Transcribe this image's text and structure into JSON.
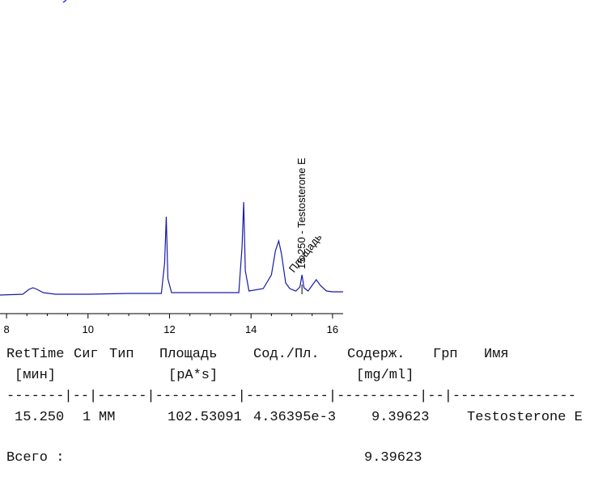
{
  "chart_data": {
    "type": "line",
    "x": [
      7.84,
      8.4,
      8.55,
      8.65,
      8.75,
      8.9,
      9.2,
      10,
      11,
      11.8,
      11.88,
      11.92,
      11.96,
      12.05,
      13,
      13.7,
      13.78,
      13.82,
      13.86,
      13.95,
      14.3,
      14.5,
      14.6,
      14.68,
      14.75,
      14.85,
      14.95,
      15.1,
      15.2,
      15.25,
      15.3,
      15.4,
      15.5,
      15.6,
      15.7,
      15.85,
      16.0,
      16.26
    ],
    "series": [
      {
        "color": "#1a1aa8",
        "values": [
          0,
          1,
          7,
          9,
          7,
          3,
          1,
          1,
          2,
          2,
          40,
          97,
          20,
          3,
          3,
          3,
          60,
          115,
          30,
          5,
          8,
          25,
          55,
          67,
          50,
          15,
          8,
          5,
          10,
          25,
          9,
          5,
          12,
          19,
          12,
          5,
          4,
          4
        ]
      }
    ],
    "xlim": [
      7.84,
      16.26
    ],
    "xticks": [
      8,
      10,
      12,
      14,
      16
    ],
    "ylim": [
      0,
      130
    ],
    "annotations": [
      {
        "x": 15.25,
        "text": "15.250 -  Testosterone E"
      },
      {
        "x": 15.45,
        "text": "Площадь"
      }
    ]
  },
  "report": {
    "headers": [
      "RetTime",
      "Сиг",
      "Тип",
      "Площадь",
      "Сод./Пл.",
      "Содерж.",
      "Грп",
      "Имя"
    ],
    "units": [
      "[мин]",
      "[pA*s]",
      "[mg/ml]"
    ],
    "separator": "-------|--|------|----------|----------|----------|--|---------------",
    "rows": [
      [
        "15.250",
        "1",
        "MM",
        "102.53091",
        "4.36395e-3",
        "9.39623",
        "Testosterone E"
      ]
    ],
    "total": {
      "label": "Всего :",
      "value": "9.39623"
    }
  }
}
